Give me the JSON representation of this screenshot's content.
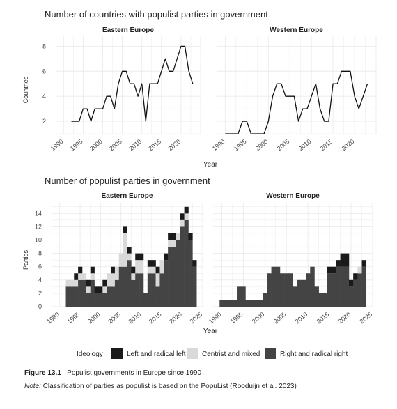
{
  "caption": {
    "figure_label": "Figure 13.1",
    "figure_text": "Populist governments in Europe since 1990",
    "note_label": "Note:",
    "note_text": "Classification of parties as populist is based on the PopuList (Rooduijn et al. 2023)"
  },
  "colors": {
    "left": "#1a1a1a",
    "centrist": "#d9d9d9",
    "right": "#444444",
    "line": "#111111",
    "panel_bg": "#ffffff",
    "grid": "#ebebeb"
  },
  "chart_data": [
    {
      "type": "line",
      "title": "Number of countries with populist parties in government",
      "xlabel": "Year",
      "ylabel": "Countries",
      "xlim": [
        1988,
        2025
      ],
      "ylim": [
        1,
        8.8
      ],
      "xticks": [
        1990,
        1995,
        2000,
        2005,
        2010,
        2015,
        2020
      ],
      "yticks": [
        2,
        4,
        6,
        8
      ],
      "panels": [
        {
          "title": "Eastern Europe",
          "x": [
            1992,
            1993,
            1994,
            1995,
            1996,
            1997,
            1998,
            1999,
            2000,
            2001,
            2002,
            2003,
            2004,
            2005,
            2006,
            2007,
            2008,
            2009,
            2010,
            2011,
            2012,
            2013,
            2014,
            2015,
            2016,
            2017,
            2018,
            2019,
            2020,
            2021,
            2022,
            2023
          ],
          "y": [
            2,
            2,
            2,
            3,
            3,
            2,
            3,
            3,
            3,
            4,
            4,
            3,
            5,
            6,
            6,
            5,
            5,
            4,
            5,
            2,
            5,
            5,
            5,
            6,
            7,
            6,
            6,
            7,
            8,
            8,
            6,
            5
          ]
        },
        {
          "title": "Western Europe",
          "x": [
            1990,
            1991,
            1992,
            1993,
            1994,
            1995,
            1996,
            1997,
            1998,
            1999,
            2000,
            2001,
            2002,
            2003,
            2004,
            2005,
            2006,
            2007,
            2008,
            2009,
            2010,
            2011,
            2012,
            2013,
            2014,
            2015,
            2016,
            2017,
            2018,
            2019,
            2020,
            2021,
            2022,
            2023
          ],
          "y": [
            1,
            1,
            1,
            1,
            2,
            2,
            1,
            1,
            1,
            1,
            2,
            4,
            5,
            5,
            4,
            4,
            4,
            2,
            3,
            3,
            4,
            5,
            3,
            2,
            2,
            5,
            5,
            6,
            6,
            6,
            4,
            3,
            4,
            5
          ]
        }
      ]
    },
    {
      "type": "bar",
      "stacked": true,
      "title": "Number of populist parties in government",
      "xlabel": "Year",
      "ylabel": "Parties",
      "xlim": [
        1988,
        2025
      ],
      "ylim": [
        0,
        15.5
      ],
      "xticks": [
        1990,
        1995,
        2000,
        2005,
        2010,
        2015,
        2020,
        2025
      ],
      "yticks": [
        0,
        2,
        4,
        6,
        8,
        10,
        12,
        14
      ],
      "legend": {
        "title": "Ideology",
        "position": "bottom",
        "entries": [
          {
            "key": "left",
            "label": "Left and radical left"
          },
          {
            "key": "centrist",
            "label": "Centrist and mixed"
          },
          {
            "key": "right",
            "label": "Right and radical right"
          }
        ]
      },
      "panels": [
        {
          "title": "Eastern Europe",
          "years": [
            1992,
            1993,
            1994,
            1995,
            1996,
            1997,
            1998,
            1999,
            2000,
            2001,
            2002,
            2003,
            2004,
            2005,
            2006,
            2007,
            2008,
            2009,
            2010,
            2011,
            2012,
            2013,
            2014,
            2015,
            2016,
            2017,
            2018,
            2019,
            2020,
            2021,
            2022,
            2023
          ],
          "series": [
            {
              "key": "right",
              "values": [
                3,
                3,
                3,
                4,
                4,
                2,
                4,
                2,
                2,
                2,
                3,
                3,
                4,
                6,
                6,
                7,
                4,
                5,
                5,
                2,
                5,
                5,
                3,
                5,
                7,
                9,
                9,
                10,
                12,
                13,
                10,
                6
              ]
            },
            {
              "key": "centrist",
              "values": [
                1,
                1,
                1,
                1,
                1,
                1,
                1,
                0,
                0,
                1,
                2,
                2,
                2,
                2,
                5,
                1,
                1,
                2,
                2,
                0,
                1,
                1,
                2,
                2,
                0,
                1,
                1,
                1,
                1,
                1,
                0,
                0
              ]
            },
            {
              "key": "left",
              "values": [
                0,
                0,
                1,
                1,
                0,
                1,
                1,
                1,
                1,
                1,
                0,
                1,
                0,
                0,
                1,
                1,
                1,
                1,
                1,
                0,
                1,
                1,
                1,
                0,
                1,
                1,
                1,
                0,
                1,
                1,
                1,
                1
              ]
            }
          ]
        },
        {
          "title": "Western Europe",
          "years": [
            1990,
            1991,
            1992,
            1993,
            1994,
            1995,
            1996,
            1997,
            1998,
            1999,
            2000,
            2001,
            2002,
            2003,
            2004,
            2005,
            2006,
            2007,
            2008,
            2009,
            2010,
            2011,
            2012,
            2013,
            2014,
            2015,
            2016,
            2017,
            2018,
            2019,
            2020,
            2021,
            2022,
            2023
          ],
          "series": [
            {
              "key": "right",
              "values": [
                1,
                1,
                1,
                1,
                3,
                3,
                1,
                1,
                1,
                1,
                2,
                5,
                6,
                6,
                5,
                5,
                5,
                3,
                4,
                4,
                5,
                6,
                3,
                2,
                2,
                5,
                5,
                6,
                6,
                6,
                3,
                4,
                5,
                6
              ]
            },
            {
              "key": "centrist",
              "values": [
                0,
                0,
                0,
                0,
                0,
                0,
                0,
                0,
                0,
                0,
                0,
                0,
                0,
                0,
                0,
                0,
                0,
                0,
                0,
                0,
                0,
                0,
                0,
                0,
                0,
                0,
                0,
                0,
                0,
                0,
                0,
                0,
                1,
                0
              ]
            },
            {
              "key": "left",
              "values": [
                0,
                0,
                0,
                0,
                0,
                0,
                0,
                0,
                0,
                0,
                0,
                0,
                0,
                0,
                0,
                0,
                0,
                0,
                0,
                0,
                0,
                0,
                0,
                0,
                0,
                1,
                1,
                1,
                2,
                2,
                1,
                1,
                0,
                1
              ]
            }
          ]
        }
      ]
    }
  ]
}
